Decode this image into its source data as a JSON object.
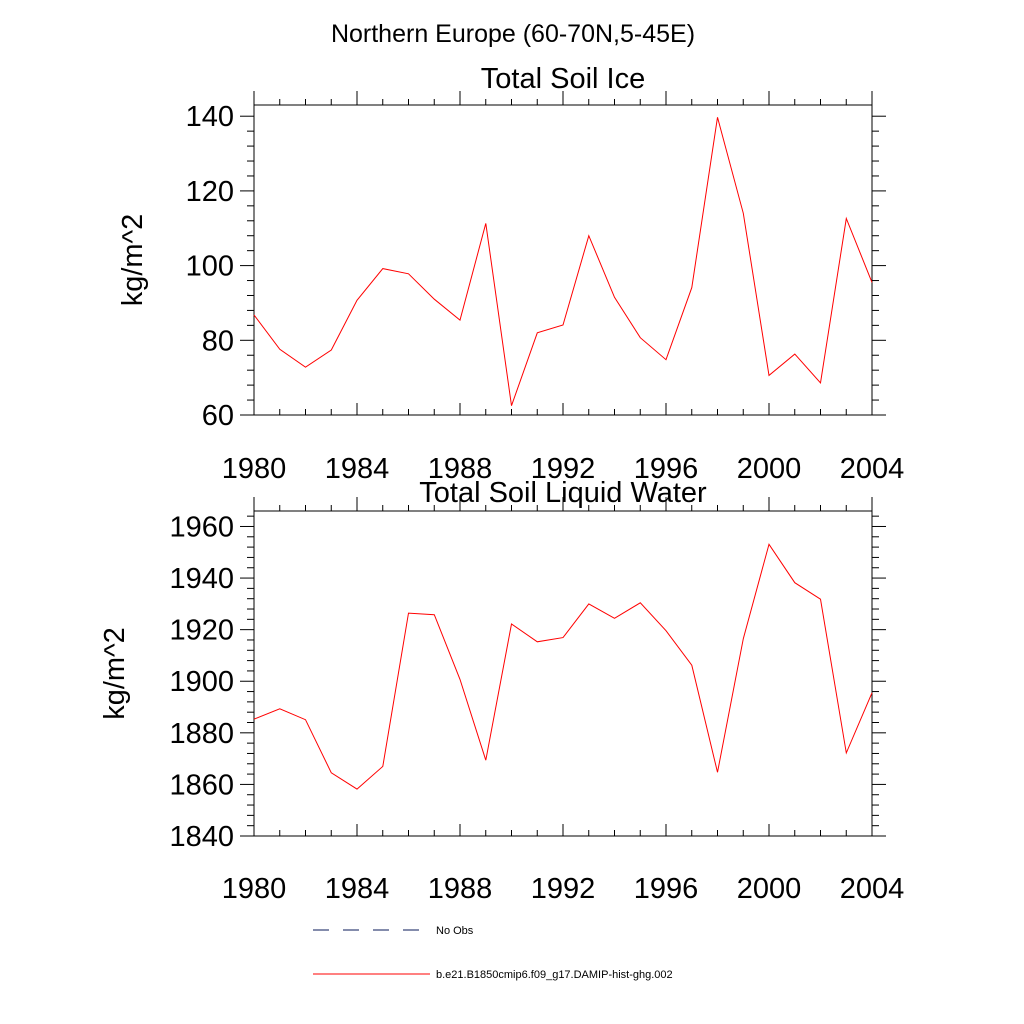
{
  "figure": {
    "title": "Northern Europe (60-70N,5-45E)"
  },
  "chart_data": [
    {
      "type": "line",
      "title": "Total Soil Ice",
      "xlabel": "",
      "ylabel": "kg/m^2",
      "xlim": [
        1980,
        2004
      ],
      "ylim": [
        60,
        143
      ],
      "x_ticks": [
        1980,
        1984,
        1988,
        1992,
        1996,
        2000,
        2004
      ],
      "y_ticks": [
        60,
        80,
        100,
        120,
        140
      ],
      "series": [
        {
          "name": "b.e21.B1850cmip6.f09_g17.DAMIP-hist-ghg.002",
          "color": "#ff0000",
          "x": [
            1980,
            1981,
            1982,
            1983,
            1984,
            1985,
            1986,
            1987,
            1988,
            1989,
            1990,
            1991,
            1992,
            1993,
            1994,
            1995,
            1996,
            1997,
            1998,
            1999,
            2000,
            2001,
            2002,
            2003,
            2004
          ],
          "values": [
            86.8,
            77.6,
            72.8,
            77.4,
            90.7,
            99.2,
            97.8,
            91.0,
            85.4,
            111.3,
            62.5,
            82.0,
            84.1,
            108.0,
            91.5,
            80.7,
            74.8,
            94.1,
            139.7,
            114.0,
            70.6,
            76.3,
            68.6,
            112.6,
            95.5
          ]
        }
      ]
    },
    {
      "type": "line",
      "title": "Total Soil Liquid Water",
      "xlabel": "",
      "ylabel": "kg/m^2",
      "xlim": [
        1980,
        2004
      ],
      "ylim": [
        1840,
        1966
      ],
      "x_ticks": [
        1980,
        1984,
        1988,
        1992,
        1996,
        2000,
        2004
      ],
      "y_ticks": [
        1840,
        1860,
        1880,
        1900,
        1920,
        1940,
        1960
      ],
      "series": [
        {
          "name": "b.e21.B1850cmip6.f09_g17.DAMIP-hist-ghg.002",
          "color": "#ff0000",
          "x": [
            1980,
            1981,
            1982,
            1983,
            1984,
            1985,
            1986,
            1987,
            1988,
            1989,
            1990,
            1991,
            1992,
            1993,
            1994,
            1995,
            1996,
            1997,
            1998,
            1999,
            2000,
            2001,
            2002,
            2003,
            2004
          ],
          "values": [
            1885.3,
            1889.3,
            1885.1,
            1864.5,
            1858.2,
            1867.0,
            1926.4,
            1925.8,
            1900.7,
            1869.4,
            1922.2,
            1915.3,
            1916.9,
            1930.0,
            1924.4,
            1930.4,
            1919.6,
            1906.2,
            1864.7,
            1916.5,
            1953.1,
            1938.2,
            1931.8,
            1872.2,
            1895.5
          ]
        }
      ]
    }
  ],
  "legend": {
    "items": [
      {
        "label": "No Obs",
        "style": "dashed",
        "color": "#0a1a5a"
      },
      {
        "label": "b.e21.B1850cmip6.f09_g17.DAMIP-hist-ghg.002",
        "style": "solid",
        "color": "#ff0000"
      }
    ]
  }
}
